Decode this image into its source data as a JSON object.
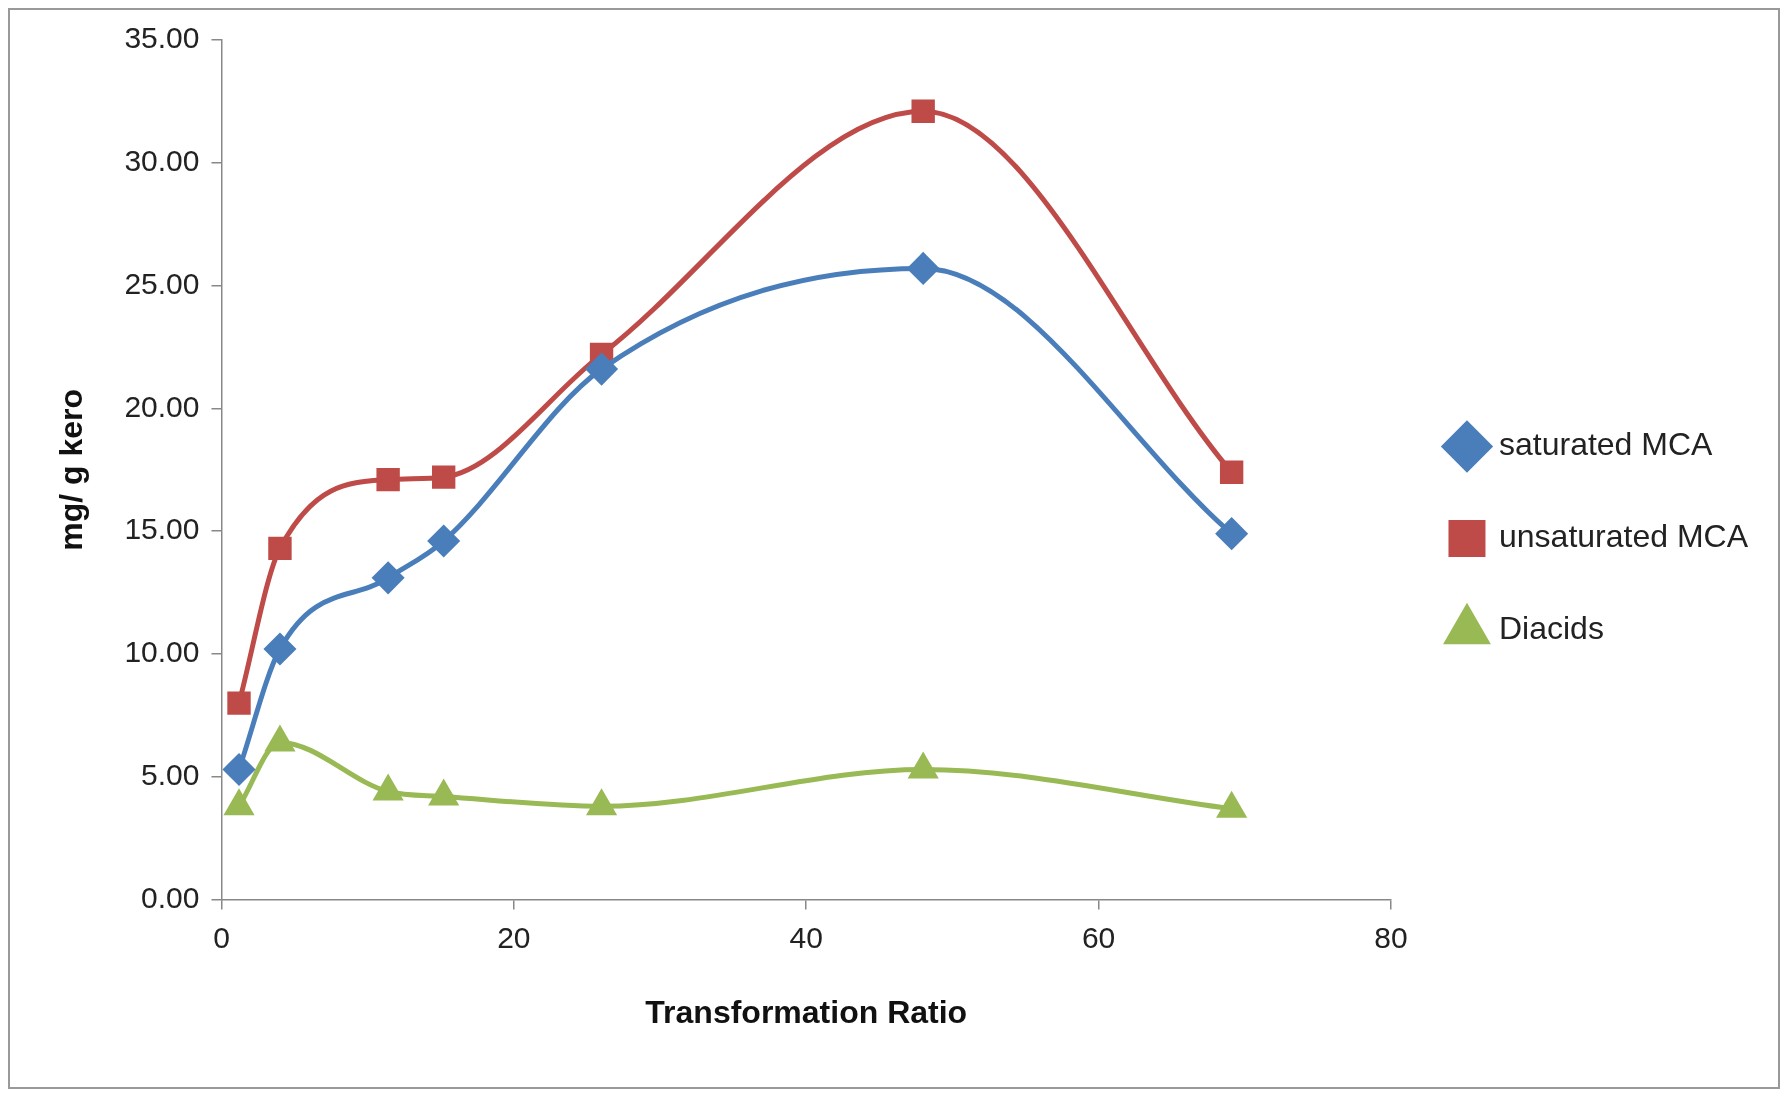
{
  "chart_data": {
    "type": "line",
    "xlabel": "Transformation Ratio",
    "ylabel": "mg/ g kero",
    "x": [
      1.2,
      4.0,
      11.4,
      15.2,
      26.0,
      48.0,
      69.1
    ],
    "series": [
      {
        "name": "saturated MCA",
        "color": "#4a7ebb",
        "marker": "diamond",
        "values": [
          5.3,
          10.2,
          13.1,
          14.6,
          21.6,
          25.7,
          14.9
        ]
      },
      {
        "name": "unsaturated MCA",
        "color": "#be4b48",
        "marker": "square",
        "values": [
          8.0,
          14.3,
          17.1,
          17.2,
          22.2,
          32.1,
          17.4
        ]
      },
      {
        "name": "Diacids",
        "color": "#98b954",
        "marker": "triangle",
        "values": [
          3.8,
          6.4,
          4.4,
          4.2,
          3.8,
          5.3,
          3.7
        ]
      }
    ],
    "xlim": [
      0,
      80
    ],
    "xticks": [
      0,
      20,
      40,
      60,
      80
    ],
    "ylim": [
      0,
      35
    ],
    "yticks": [
      {
        "value": 0,
        "label": "0.00"
      },
      {
        "value": 5,
        "label": "5.00"
      },
      {
        "value": 10,
        "label": "10.00"
      },
      {
        "value": 15,
        "label": "15.00"
      },
      {
        "value": 20,
        "label": "20.00"
      },
      {
        "value": 25,
        "label": "25.00"
      },
      {
        "value": 30,
        "label": "30.00"
      },
      {
        "value": 35,
        "label": "35.00"
      }
    ],
    "grid": false,
    "legend": "right",
    "line_style": "solid"
  }
}
